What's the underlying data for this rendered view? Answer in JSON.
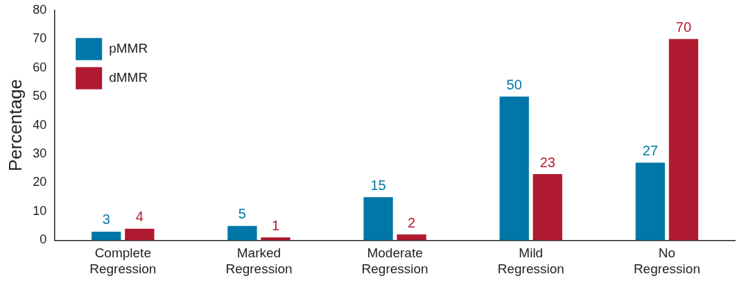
{
  "chart_data": {
    "type": "bar",
    "ylabel": "Percentage",
    "categories": [
      "Complete Regression",
      "Marked Regression",
      "Moderate Regression",
      "Mild Regression",
      "No Regression"
    ],
    "series": [
      {
        "name": "pMMR",
        "color": "#0077a6",
        "values": [
          3,
          5,
          15,
          50,
          27
        ]
      },
      {
        "name": "dMMR",
        "color": "#b01a30",
        "values": [
          4,
          1,
          2,
          23,
          70
        ]
      }
    ],
    "ylim": [
      0,
      80
    ],
    "yticks": [
      0,
      10,
      20,
      30,
      40,
      50,
      60,
      70,
      80
    ],
    "grid": false,
    "legend": "top left",
    "data_labels": true
  }
}
